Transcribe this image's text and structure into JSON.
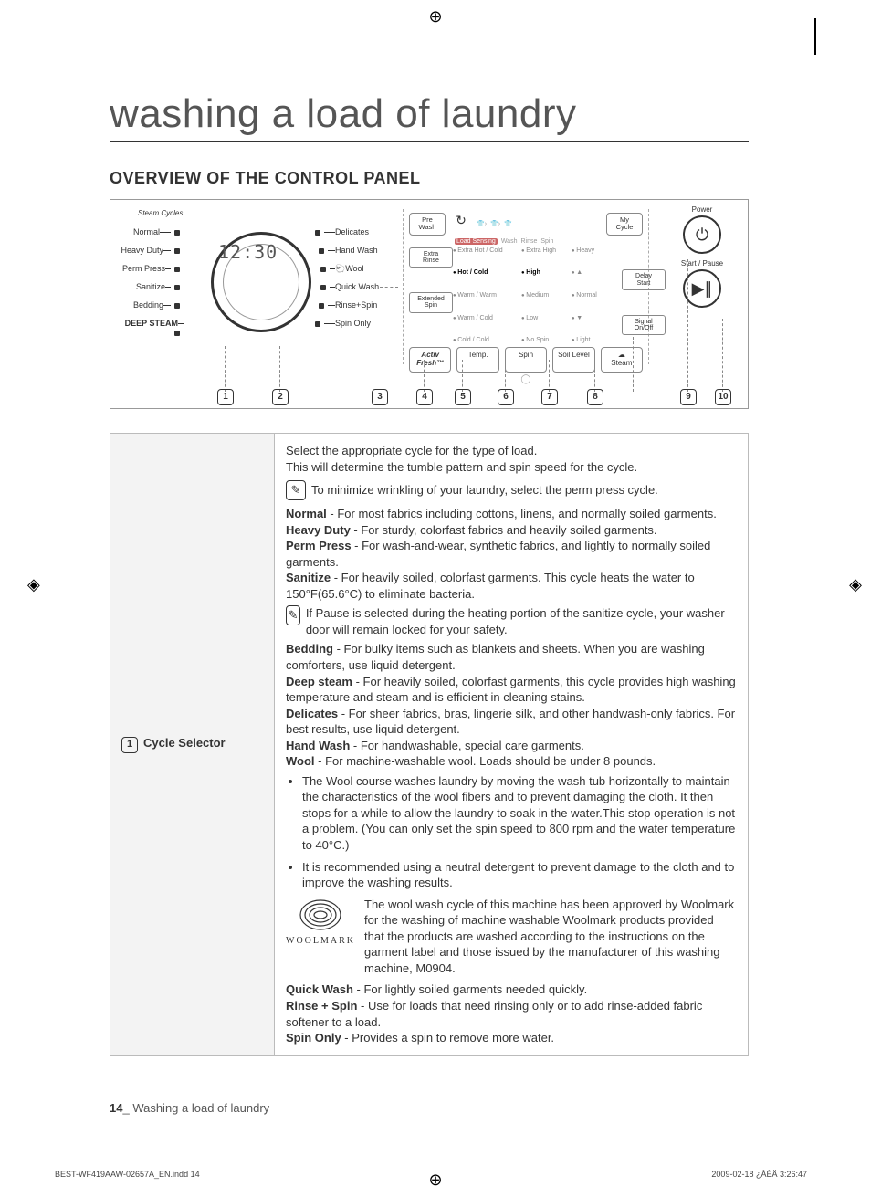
{
  "page": {
    "title": "washing a load of laundry",
    "section": "OVERVIEW OF THE CONTROL PANEL",
    "page_num": "14",
    "footer_text": "Washing a load of laundry",
    "print_file": "BEST-WF419AAW-02657A_EN.indd   14",
    "print_date": "2009-02-18   ¿ÀÈÄ 3:26:47"
  },
  "panel": {
    "steam_cycles": "Steam Cycles",
    "display": "12:30",
    "left_cycles": [
      "Normal",
      "Heavy Duty",
      "Perm Press",
      "Sanitize",
      "Bedding",
      "DEEP STEAM"
    ],
    "right_cycles": [
      "Delicates",
      "Hand Wash",
      "Wool",
      "Quick Wash",
      "Rinse+Spin",
      "Spin Only"
    ],
    "mid_top": [
      "Pre\nWash",
      "",
      "My\nCycle"
    ],
    "progress": [
      "Load Sensing",
      "Wash",
      "Rinse",
      "Spin"
    ],
    "option_rows": [
      {
        "btn": "Extra\nRinse",
        "temp": "Extra Hot / Cold",
        "spin": "Extra High",
        "soil": "Heavy",
        "side": ""
      },
      {
        "btn": "",
        "temp": "Hot / Cold",
        "spin": "High",
        "soil": "▲",
        "side": "Delay\nStart"
      },
      {
        "btn": "Extended\nSpin",
        "temp": "Warm / Warm",
        "spin": "Medium",
        "soil": "Normal",
        "side": ""
      },
      {
        "btn": "",
        "temp": "Warm / Cold",
        "spin": "Low",
        "soil": "▼",
        "side": "Signal\nOn/Off"
      },
      {
        "btn": "",
        "temp": "Cold / Cold",
        "spin": "No Spin",
        "soil": "Light",
        "side": ""
      }
    ],
    "bottom_buttons": [
      "Activ\nFresh",
      "Temp.",
      "Spin",
      "Soil Level",
      "Steam"
    ],
    "power": "Power",
    "start": "Start / Pause",
    "numbers": [
      "1",
      "2",
      "3",
      "4",
      "5",
      "6",
      "7",
      "8",
      "9",
      "10"
    ]
  },
  "table": {
    "row_num": "1",
    "row_title": "Cycle Selector",
    "intro1": "Select the appropriate cycle for the type of load.",
    "intro2": "This will determine the tumble pattern and spin speed for the cycle.",
    "note1": "To minimize wrinkling of your laundry, select the perm press cycle.",
    "normal": "Normal",
    "normal_d": " - For most fabrics including cottons, linens, and normally soiled garments.",
    "heavy": "Heavy Duty",
    "heavy_d": " - For sturdy, colorfast fabrics and heavily soiled garments.",
    "perm": "Perm Press",
    "perm_d": " - For wash-and-wear, synthetic fabrics, and lightly to normally soiled garments.",
    "sanitize": "Sanitize",
    "sanitize_d": " - For heavily soiled, colorfast garments. This cycle heats the water to 150°F(65.6°C) to eliminate bacteria.",
    "note2": "If Pause is selected during the heating portion of the sanitize cycle, your washer door will remain locked for your safety.",
    "bedding": "Bedding",
    "bedding_d": " - For bulky items such as blankets and sheets. When you are washing comforters, use liquid detergent.",
    "deep": "Deep steam",
    "deep_d": " - For heavily soiled, colorfast garments, this cycle provides high washing temperature and steam and is efficient in cleaning stains.",
    "delicates": "Delicates",
    "delicates_d": " - For sheer fabrics, bras, lingerie silk, and other handwash-only fabrics. For best results, use liquid detergent.",
    "hand": "Hand Wash",
    "hand_d": " - For handwashable, special care garments.",
    "wool": "Wool",
    "wool_d": " - For machine-washable wool. Loads should be under 8 pounds.",
    "wool_b1": "The Wool course washes laundry by moving the wash tub horizontally to maintain the characteristics of the wool fibers and to prevent damaging the cloth. It then stops for a while to allow the laundry to soak in the water.This stop operation is not a problem. (You can only set the spin speed to 800 rpm and the water temperature to 40°C.)",
    "wool_b2": "It is recommended using a neutral detergent to prevent damage to the cloth and to improve the washing results.",
    "woolmark_label": "WOOLMARK",
    "woolmark_text": "The wool wash cycle of this machine has been approved by Woolmark for the washing of machine washable Woolmark products provided that the products are washed according to the instructions on the garment label and those issued by the manufacturer of this washing machine, M0904.",
    "quick": "Quick Wash",
    "quick_d": " - For lightly soiled garments needed quickly.",
    "rinse": "Rinse + Spin",
    "rinse_d": " - Use for loads that need rinsing only or to add rinse-added fabric softener to a load.",
    "spinonly": "Spin Only",
    "spinonly_d": " - Provides a spin to remove more water."
  },
  "style": {
    "text_color": "#333333",
    "border_color": "#999999",
    "bg_shade": "#f3f3f3"
  }
}
